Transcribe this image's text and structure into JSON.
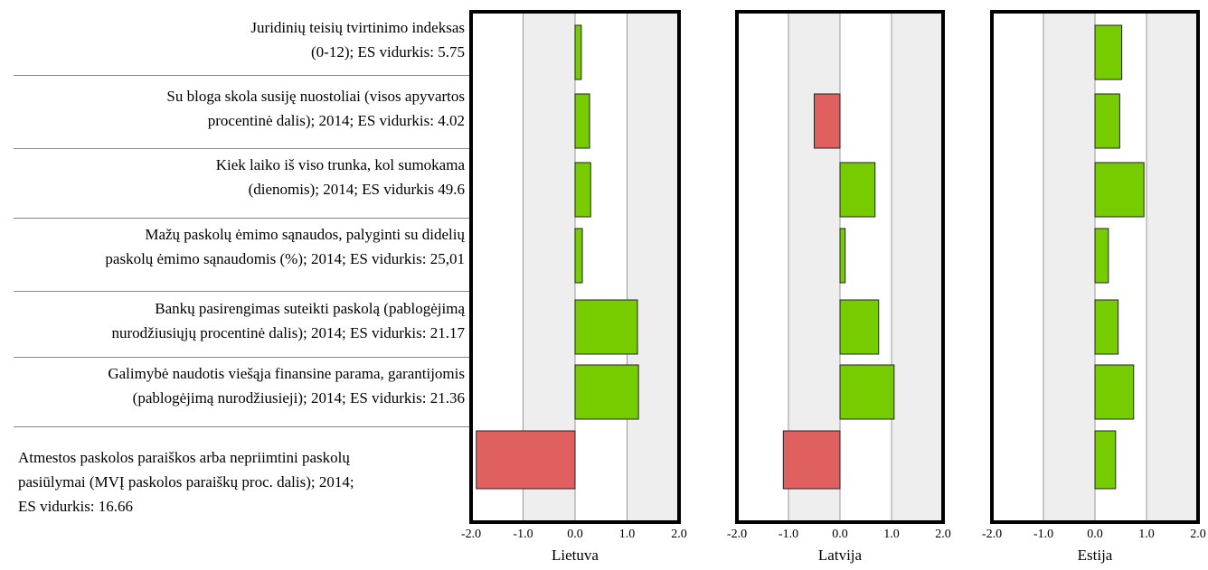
{
  "chart_data": {
    "type": "bar",
    "orientation": "horizontal",
    "xlim": [
      -2.0,
      2.0
    ],
    "xticks": [
      "-2.0",
      "-1.0",
      "0.0",
      "1.0",
      "2.0"
    ],
    "categories": [
      [
        "Juridinių teisių tvirtinimo indeksas",
        "(0-12); ES vidurkis: 5.75"
      ],
      [
        "Su bloga skola susiję nuostoliai (visos apyvartos",
        "procentinė dalis); 2014; ES vidurkis: 4.02"
      ],
      [
        "Kiek laiko iš viso trunka, kol sumokama",
        "(dienomis); 2014; ES vidurkis 49.6"
      ],
      [
        "Mažų paskolų ėmimo sąnaudos, palyginti su didelių",
        "paskolų ėmimo sąnaudomis (%); 2014; ES vidurkis: 25,01"
      ],
      [
        "Bankų pasirengimas suteikti paskolą (pablogėjimą",
        "nurodžiusiųjų procentinė dalis); 2014; ES vidurkis: 21.17"
      ],
      [
        "Galimybė naudotis viešąja finansine parama, garantijomis",
        "(pablogėjimą nurodžiusieji); 2014; ES vidurkis: 21.36"
      ],
      [
        "Atmestos paskolos paraiškos arba nepriimtini paskolų",
        "pasiūlymai (MVĮ paskolos paraiškų proc. dalis); 2014;",
        "ES vidurkis: 16.66"
      ]
    ],
    "series": [
      {
        "name": "Lietuva",
        "values": [
          0.12,
          0.28,
          0.3,
          0.14,
          1.2,
          1.22,
          -1.9
        ]
      },
      {
        "name": "Latvija",
        "values": [
          null,
          -0.5,
          0.68,
          0.1,
          0.75,
          1.05,
          -1.1
        ]
      },
      {
        "name": "Estija",
        "values": [
          0.52,
          0.48,
          0.95,
          0.26,
          0.45,
          0.75,
          0.4
        ]
      }
    ],
    "colors": {
      "positive": "#77cc00",
      "negative": "#e06060",
      "stripe": "#eeeeee",
      "frame": "#000000",
      "gridline": "#999999"
    }
  }
}
